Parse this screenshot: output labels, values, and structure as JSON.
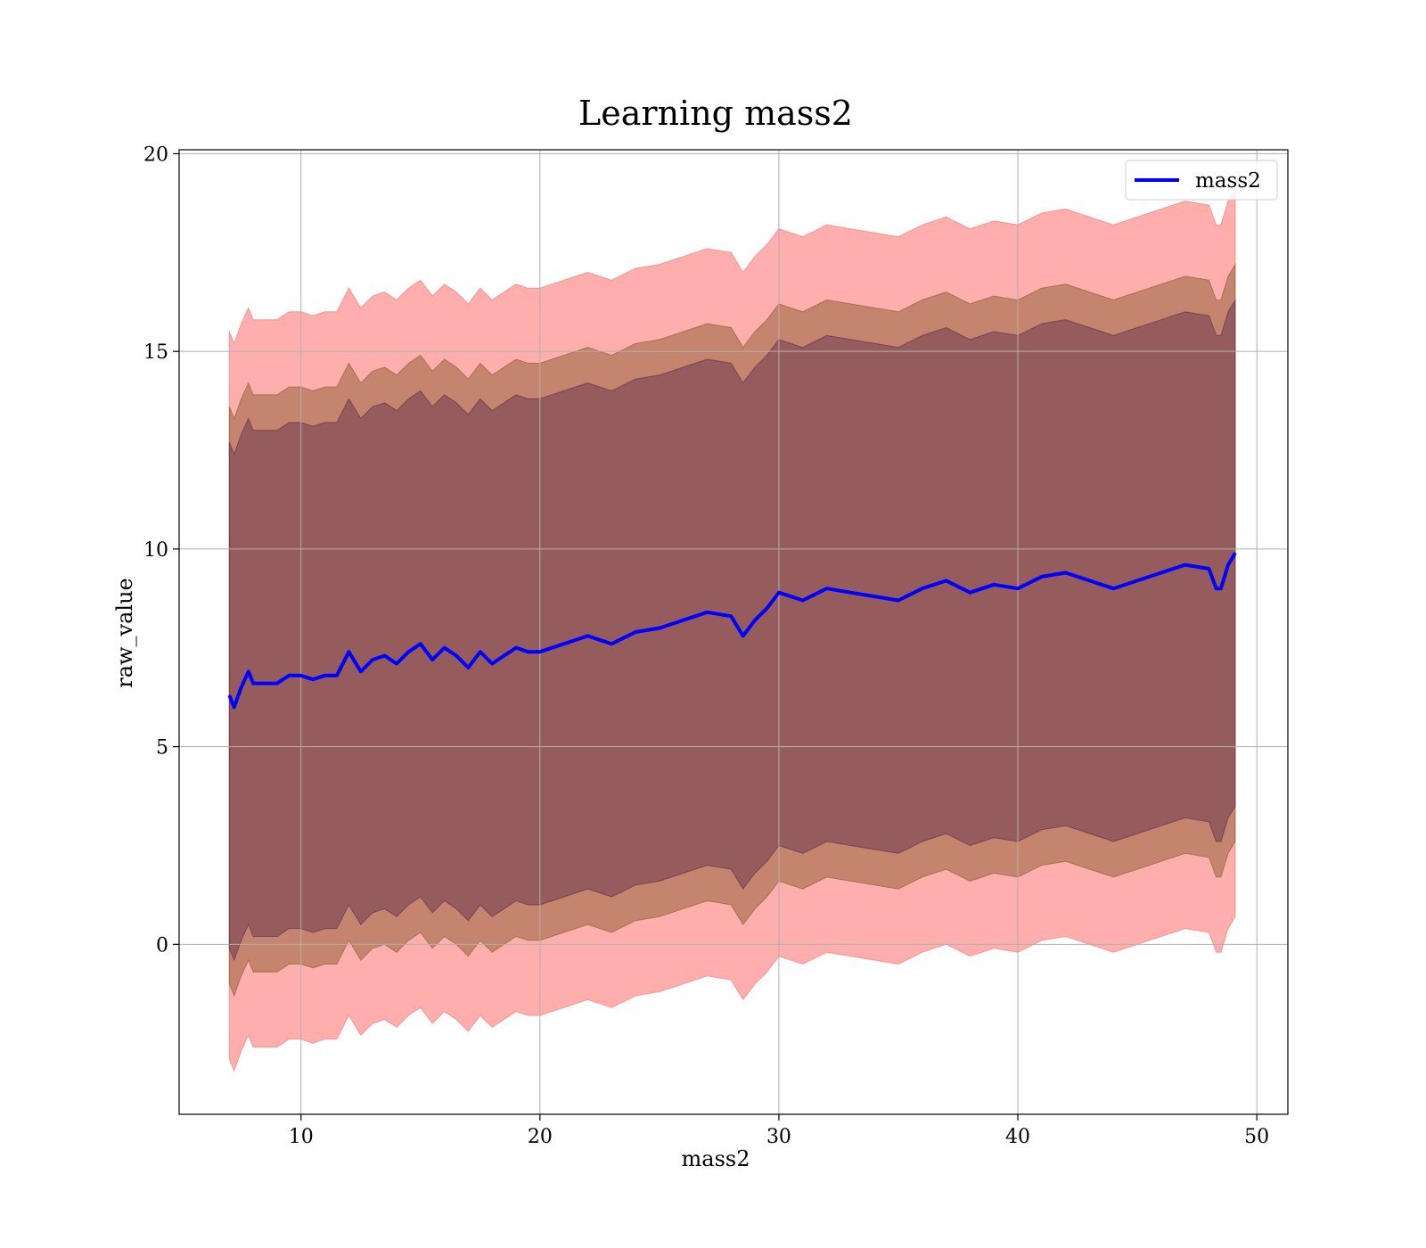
{
  "chart_data": {
    "type": "area",
    "title": "Learning mass2",
    "xlabel": "mass2",
    "ylabel": "raw_value",
    "xlim": [
      4.9,
      51.3
    ],
    "ylim": [
      -4.3,
      20.1
    ],
    "xticks": [
      10,
      20,
      30,
      40,
      50
    ],
    "yticks": [
      0,
      5,
      10,
      15,
      20
    ],
    "grid": true,
    "legend": {
      "placement": "top-right",
      "entries": [
        "mass2"
      ]
    },
    "colors": {
      "line": "#0000ff",
      "band_outer": "#ff6b6b",
      "band_middle": "#8b5a2b",
      "band_inner": "#5b2a4a"
    },
    "x": [
      7.0,
      7.2,
      7.5,
      7.8,
      8.0,
      8.5,
      9.0,
      9.5,
      10.0,
      10.5,
      11.0,
      11.5,
      12.0,
      12.5,
      13.0,
      13.5,
      14.0,
      14.5,
      15.0,
      15.5,
      16.0,
      16.5,
      17.0,
      17.5,
      18.0,
      18.5,
      19.0,
      19.5,
      20.0,
      21.0,
      22.0,
      23.0,
      24.0,
      25.0,
      26.0,
      27.0,
      28.0,
      28.5,
      29.0,
      29.5,
      30.0,
      31.0,
      32.0,
      33.0,
      34.0,
      35.0,
      36.0,
      37.0,
      38.0,
      39.0,
      40.0,
      41.0,
      42.0,
      43.0,
      44.0,
      45.0,
      46.0,
      47.0,
      48.0,
      48.3,
      48.5,
      48.8,
      49.1
    ],
    "series": [
      {
        "name": "mass2",
        "values": [
          6.3,
          6.0,
          6.5,
          6.9,
          6.6,
          6.6,
          6.6,
          6.8,
          6.8,
          6.7,
          6.8,
          6.8,
          7.4,
          6.9,
          7.2,
          7.3,
          7.1,
          7.4,
          7.6,
          7.2,
          7.5,
          7.3,
          7.0,
          7.4,
          7.1,
          7.3,
          7.5,
          7.4,
          7.4,
          7.6,
          7.8,
          7.6,
          7.9,
          8.0,
          8.2,
          8.4,
          8.3,
          7.8,
          8.2,
          8.5,
          8.9,
          8.7,
          9.0,
          8.9,
          8.8,
          8.7,
          9.0,
          9.2,
          8.9,
          9.1,
          9.0,
          9.3,
          9.4,
          9.2,
          9.0,
          9.2,
          9.4,
          9.6,
          9.5,
          9.0,
          9.0,
          9.6,
          9.9
        ]
      }
    ],
    "bands": [
      {
        "offset": 9.2,
        "offset_label": "outer"
      },
      {
        "offset": 7.3,
        "offset_label": "middle"
      },
      {
        "offset": 6.4,
        "offset_label": "inner"
      }
    ]
  }
}
